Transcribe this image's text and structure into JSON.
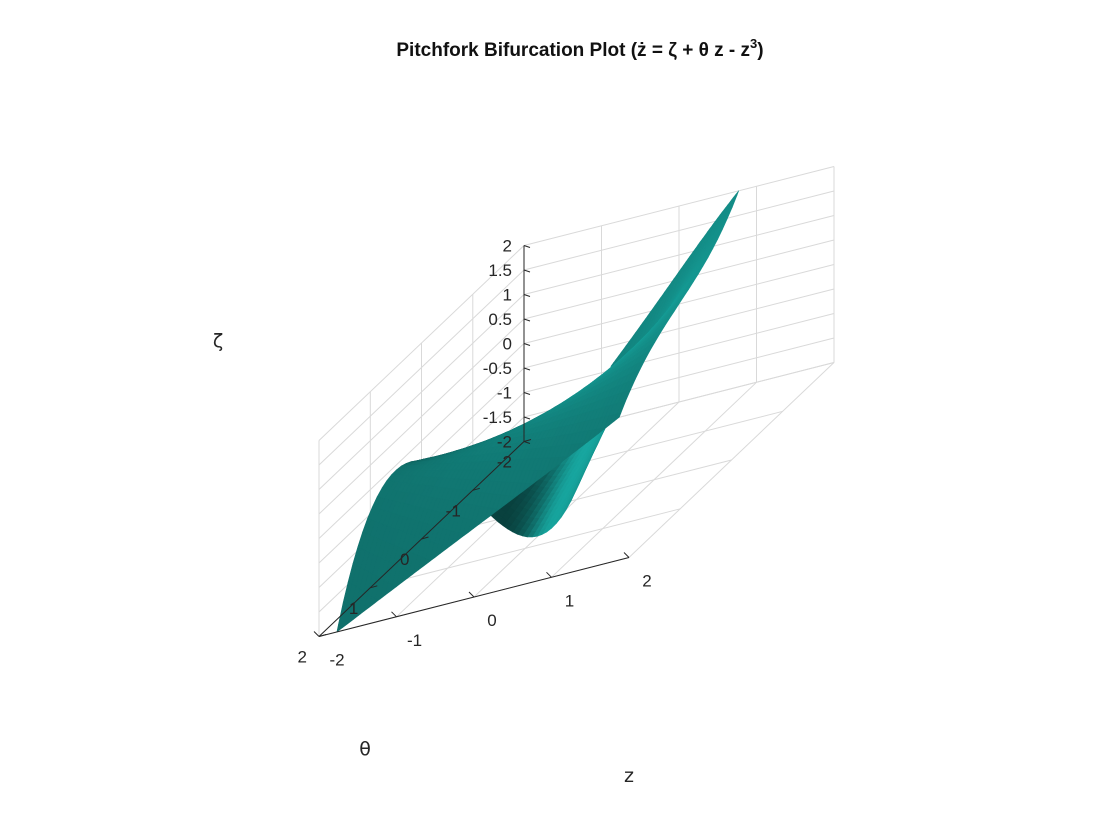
{
  "chart_data": {
    "type": "surface",
    "title": "Pitchfork Bifurcation Plot (ż = ζ + θ z - z",
    "title_superscript": "3",
    "title_suffix": ")",
    "xlabel": "z",
    "ylabel": "θ",
    "zlabel": "ζ",
    "xlim": [
      -2,
      2
    ],
    "ylim": [
      -2,
      2
    ],
    "zlim": [
      -2,
      2
    ],
    "x_ticks": [
      "-2",
      "-1",
      "0",
      "1",
      "2"
    ],
    "y_ticks": [
      "-2",
      "-1",
      "0",
      "1",
      "2"
    ],
    "z_ticks": [
      "-2",
      "-1.5",
      "-1",
      "-0.5",
      "0",
      "0.5",
      "1",
      "1.5",
      "2"
    ],
    "surface_equation": "ζ = z³ − θ z",
    "surface_color": "#18a9a2",
    "grid": true,
    "box": "back planes"
  }
}
